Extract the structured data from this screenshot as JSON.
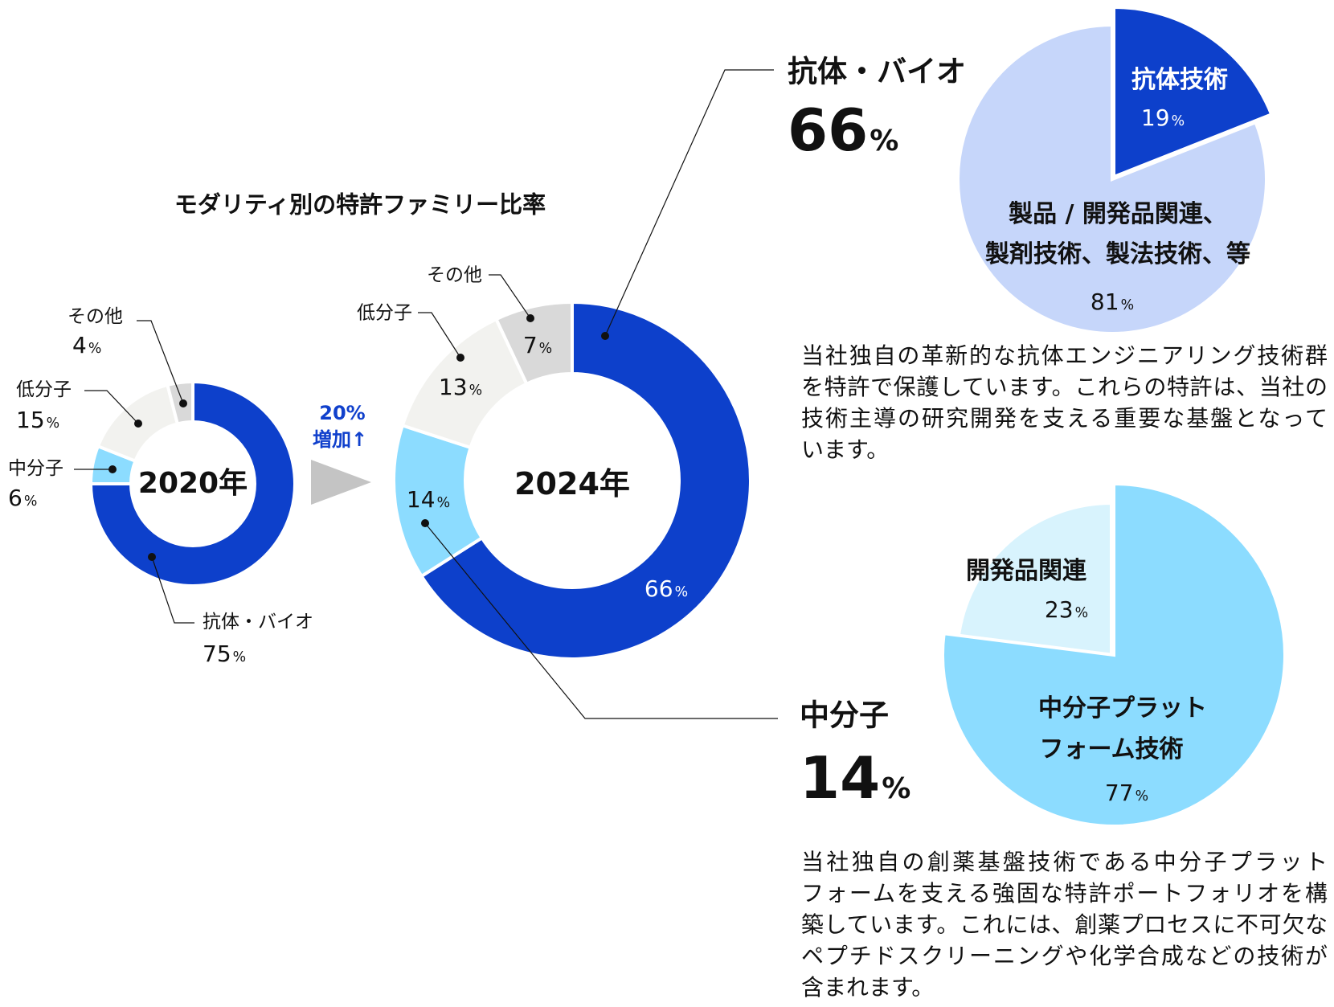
{
  "colors": {
    "antibody": "#0d40cb",
    "middle": "#8cdcff",
    "small": "#f2f2ef",
    "other": "#d9d9d9",
    "pale_blue": "#c6d6fa",
    "pale_cyan": "#d8f3fd",
    "arrow": "#c4c4c4",
    "accent_text": "#1040cc"
  },
  "title": "モダリティ別の特許ファミリー比率",
  "increase": {
    "value": "20%",
    "label": "増加↑"
  },
  "chart_data": [
    {
      "type": "pie",
      "variant": "donut",
      "center_label": "2020年",
      "categories": [
        "抗体・バイオ",
        "中分子",
        "低分子",
        "その他"
      ],
      "values": [
        75,
        6,
        15,
        4
      ],
      "unit": "%"
    },
    {
      "type": "pie",
      "variant": "donut",
      "center_label": "2024年",
      "categories": [
        "抗体・バイオ",
        "中分子",
        "低分子",
        "その他"
      ],
      "values": [
        66,
        14,
        13,
        7
      ],
      "unit": "%"
    },
    {
      "type": "pie",
      "title": "抗体・バイオ",
      "title_value": "66",
      "categories": [
        "抗体技術",
        "製品 / 開発品関連、製剤技術、製法技術、等"
      ],
      "values": [
        19,
        81
      ],
      "unit": "%"
    },
    {
      "type": "pie",
      "title": "中分子",
      "title_value": "14",
      "categories": [
        "中分子プラットフォーム技術",
        "開発品関連"
      ],
      "values": [
        77,
        23
      ],
      "unit": "%"
    }
  ],
  "labels": {
    "pct": "%",
    "d2020": {
      "other": "その他",
      "small": "低分子",
      "middle": "中分子",
      "antibody": "抗体・バイオ",
      "other_v": "4",
      "small_v": "15",
      "middle_v": "6",
      "antibody_v": "75"
    },
    "d2024": {
      "other": "その他",
      "small": "低分子",
      "other_v": "7",
      "small_v": "13",
      "middle_v": "14",
      "antibody_v": "66"
    },
    "anti": {
      "title": "抗体・バイオ",
      "value": "66",
      "tech": "抗体技術",
      "tech_v": "19",
      "rest_1": "製品 / 開発品関連、",
      "rest_2": "製剤技術、製法技術、等",
      "rest_v": "81"
    },
    "mid": {
      "title": "中分子",
      "value": "14",
      "dev": "開発品関連",
      "dev_v": "23",
      "plat_1": "中分子プラット",
      "plat_2": "フォーム技術",
      "plat_v": "77"
    }
  },
  "paragraphs": {
    "antibody": [
      "当社独自の革新的な抗体エンジニアリング技術群",
      "を特許で保護しています。これらの特許は、当社の",
      "技術主導の研究開発を支える重要な基盤となって",
      "います。"
    ],
    "middle": [
      "当社独自の創薬基盤技術である中分子プラット",
      "フォームを支える強固な特許ポートフォリオを構",
      "築しています。これには、創薬プロセスに不可欠な",
      "ペプチドスクリーニングや化学合成などの技術が",
      "含まれます。"
    ]
  }
}
